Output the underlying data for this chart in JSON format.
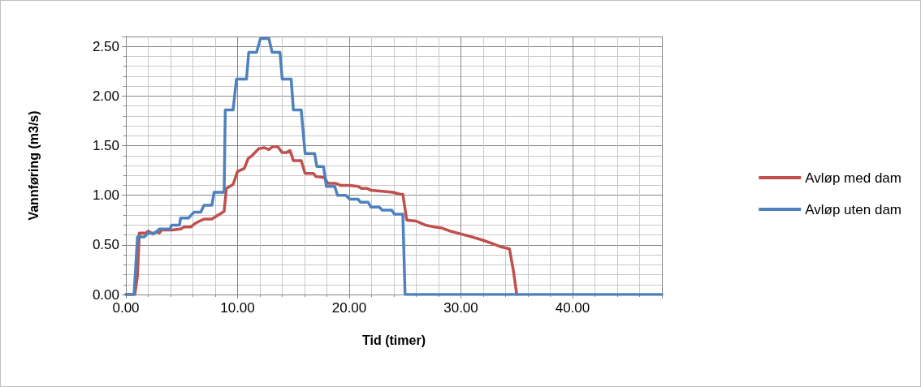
{
  "chart_data": {
    "type": "line",
    "xlabel": "Tid (timer)",
    "ylabel": "Vannføring (m3/s)",
    "xlim": [
      0,
      48
    ],
    "xticks": [
      {
        "value": 0,
        "label": "0.00"
      },
      {
        "value": 10,
        "label": "10.00"
      },
      {
        "value": 20,
        "label": "20.00"
      },
      {
        "value": 30,
        "label": "30.00"
      },
      {
        "value": 40,
        "label": "40.00"
      }
    ],
    "ylim": [
      0,
      2.6
    ],
    "yticks": [
      {
        "value": 0,
        "label": "0.00"
      },
      {
        "value": 0.5,
        "label": "0.50"
      },
      {
        "value": 1,
        "label": "1.00"
      },
      {
        "value": 1.5,
        "label": "1.50"
      },
      {
        "value": 2,
        "label": "2.00"
      },
      {
        "value": 2.5,
        "label": "2.50"
      }
    ],
    "grid": true,
    "legend": "right",
    "marker": "none",
    "line_style": "solid",
    "series": [
      {
        "name": "Avløp med dam",
        "color": "#c0504d",
        "x": [
          0,
          0.8,
          1.04,
          1.2,
          1.8,
          2.0,
          2.4,
          2.7,
          3.0,
          3.2,
          4.1,
          4.9,
          5.2,
          5.8,
          6.25,
          6.6,
          7.0,
          7.7,
          8.1,
          8.55,
          8.8,
          9.0,
          9.6,
          10.0,
          10.6,
          10.95,
          11.3,
          11.9,
          12.4,
          12.8,
          13.15,
          13.6,
          14.0,
          14.35,
          14.7,
          15.0,
          15.7,
          16.05,
          16.8,
          17.0,
          17.75,
          18.1,
          18.8,
          19.2,
          20.05,
          20.8,
          21.1,
          21.6,
          21.95,
          22.95,
          23.9,
          24.6,
          24.8,
          25.15,
          26.0,
          26.8,
          27.6,
          28.3,
          29.0,
          30.0,
          31.0,
          31.9,
          32.9,
          33.6,
          34.35,
          34.7,
          35.0
        ],
        "values": [
          0,
          0,
          0.19,
          0.62,
          0.62,
          0.64,
          0.61,
          0.63,
          0.62,
          0.65,
          0.65,
          0.66,
          0.68,
          0.68,
          0.72,
          0.74,
          0.76,
          0.76,
          0.79,
          0.82,
          0.84,
          1.07,
          1.11,
          1.24,
          1.27,
          1.37,
          1.4,
          1.47,
          1.48,
          1.46,
          1.49,
          1.49,
          1.43,
          1.43,
          1.45,
          1.35,
          1.35,
          1.22,
          1.22,
          1.19,
          1.18,
          1.12,
          1.12,
          1.1,
          1.1,
          1.09,
          1.07,
          1.07,
          1.05,
          1.04,
          1.03,
          1.01,
          1.01,
          0.75,
          0.74,
          0.7,
          0.68,
          0.67,
          0.64,
          0.61,
          0.58,
          0.55,
          0.51,
          0.48,
          0.46,
          0.24,
          0
        ]
      },
      {
        "name": "Avløp uten dam",
        "color": "#4f81bd",
        "x": [
          0,
          0.73,
          1.04,
          1.65,
          2.0,
          2.6,
          3.0,
          3.95,
          4.1,
          4.8,
          4.9,
          5.6,
          6.1,
          6.7,
          7.0,
          7.7,
          7.9,
          8.8,
          8.9,
          9.6,
          9.9,
          10.8,
          11.0,
          11.7,
          12.05,
          12.8,
          13.1,
          13.8,
          14.0,
          14.8,
          15.0,
          15.7,
          16.05,
          16.9,
          17.1,
          17.7,
          17.95,
          18.7,
          18.95,
          19.7,
          20.05,
          20.8,
          21.0,
          21.7,
          21.95,
          22.7,
          22.95,
          23.8,
          24.05,
          24.8,
          25.0,
          48
        ],
        "values": [
          0,
          0,
          0.58,
          0.58,
          0.62,
          0.62,
          0.66,
          0.66,
          0.7,
          0.7,
          0.77,
          0.77,
          0.83,
          0.83,
          0.9,
          0.9,
          1.03,
          1.03,
          1.86,
          1.86,
          2.17,
          2.17,
          2.44,
          2.44,
          2.58,
          2.58,
          2.44,
          2.44,
          2.17,
          2.17,
          1.86,
          1.86,
          1.42,
          1.42,
          1.29,
          1.29,
          1.09,
          1.09,
          1,
          1,
          0.96,
          0.96,
          0.93,
          0.93,
          0.88,
          0.88,
          0.85,
          0.85,
          0.81,
          0.81,
          0,
          0
        ]
      }
    ]
  }
}
